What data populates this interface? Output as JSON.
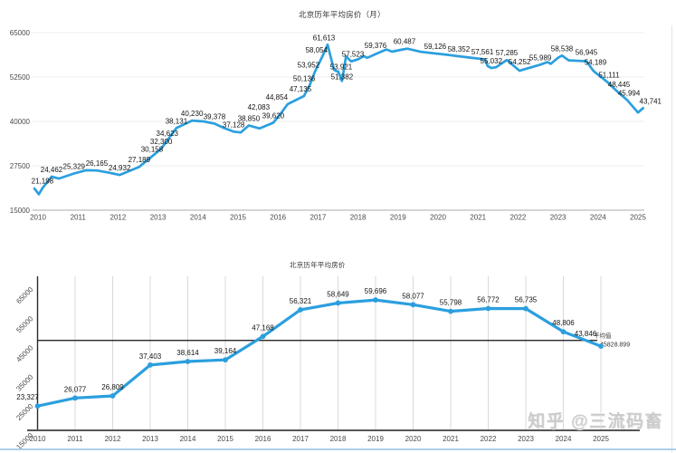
{
  "page": {
    "background": "#ffffff",
    "accent_blue": "#2b9fde",
    "watermark": "知乎 @三流码畜"
  },
  "chart_data": [
    {
      "type": "line",
      "title": "北京历年平均房价（月）",
      "xlabel": "",
      "ylabel": "",
      "x_ticks": [
        "2010",
        "2011",
        "2012",
        "2013",
        "2014",
        "2015",
        "2016",
        "2017",
        "2018",
        "2019",
        "2020",
        "2021",
        "2022",
        "2023",
        "2024",
        "2025"
      ],
      "y_ticks": [
        15000,
        27500,
        40000,
        52500,
        65000
      ],
      "ylim": [
        15000,
        65000
      ],
      "xlim": [
        2009.9,
        2025.4
      ],
      "grid": "horizontal",
      "legend": "none",
      "line_color": "#2b9fde",
      "points": [
        [
          2009.91,
          21100
        ],
        [
          2010.02,
          19500
        ],
        [
          2010.11,
          21198,
          "21,198"
        ],
        [
          2010.34,
          24462,
          "24,462"
        ],
        [
          2010.52,
          23900
        ],
        [
          2010.9,
          25329,
          "25,329"
        ],
        [
          2011.2,
          26250
        ],
        [
          2011.47,
          26165,
          "26,165"
        ],
        [
          2011.76,
          25600
        ],
        [
          2012.04,
          24932,
          "24,932"
        ],
        [
          2012.53,
          27189,
          "27,189"
        ],
        [
          2012.85,
          30158,
          "30,158"
        ],
        [
          2013.08,
          32300,
          "32,300"
        ],
        [
          2013.23,
          34623,
          "34,623"
        ],
        [
          2013.46,
          38131,
          "38,131"
        ],
        [
          2013.85,
          40230,
          "40,230"
        ],
        [
          2014.14,
          40000
        ],
        [
          2014.41,
          39378,
          "39,378"
        ],
        [
          2014.64,
          38200
        ],
        [
          2014.89,
          37128,
          "37,128"
        ],
        [
          2015.07,
          36900
        ],
        [
          2015.27,
          38850,
          "38,850"
        ],
        [
          2015.54,
          38000
        ],
        [
          2015.88,
          39620,
          "39,620"
        ],
        [
          2016.06,
          42083,
          "42,083",
          -24
        ],
        [
          2016.24,
          44854,
          "44,854",
          -12
        ],
        [
          2016.65,
          47135,
          "47,135",
          -4
        ],
        [
          2016.79,
          50136,
          "50,136",
          -6
        ],
        [
          2016.92,
          53952,
          "53,952",
          -7
        ],
        [
          2017.1,
          58054,
          "58,054",
          -6
        ],
        [
          2017.24,
          61613,
          "61,613",
          -4
        ],
        [
          2017.4,
          54500
        ],
        [
          2017.51,
          53921,
          "53,921",
          3,
          2
        ],
        [
          2017.6,
          51382,
          "51,382",
          0,
          3
        ],
        [
          2017.7,
          58300
        ],
        [
          2017.83,
          56900
        ],
        [
          2018.01,
          57523,
          "57,523",
          -6,
          2
        ],
        [
          2018.14,
          58400
        ],
        [
          2018.23,
          57900
        ],
        [
          2018.53,
          59376,
          "59,376",
          -4
        ],
        [
          2018.71,
          60250
        ],
        [
          2018.85,
          59650
        ],
        [
          2019.07,
          60150
        ],
        [
          2019.23,
          60487,
          "60,487",
          -3
        ],
        [
          2019.57,
          59600
        ],
        [
          2019.93,
          59126,
          "59,126"
        ],
        [
          2020.24,
          58750
        ],
        [
          2020.52,
          58352,
          "58,352"
        ],
        [
          2020.81,
          57960
        ],
        [
          2021.11,
          57561,
          "57,561"
        ],
        [
          2021.18,
          57350
        ],
        [
          2021.24,
          55600
        ],
        [
          2021.33,
          55032,
          "55,032"
        ],
        [
          2021.45,
          55250
        ],
        [
          2021.72,
          57285,
          "57,285"
        ],
        [
          2022.04,
          54252,
          "54,252",
          0,
          -2
        ],
        [
          2022.18,
          54750
        ],
        [
          2022.56,
          55989,
          "55,989"
        ],
        [
          2022.74,
          56700
        ],
        [
          2022.82,
          56200
        ],
        [
          2023.0,
          57900
        ],
        [
          2023.1,
          58538,
          "58,538"
        ],
        [
          2023.27,
          57200
        ],
        [
          2023.71,
          56945,
          "56,945",
          0,
          -2
        ],
        [
          2023.89,
          54189,
          "54,189",
          2,
          -2
        ],
        [
          2024.23,
          51111,
          "51,111",
          2
        ],
        [
          2024.48,
          48445,
          "48,445",
          2
        ],
        [
          2024.73,
          45994,
          "45,994",
          2
        ],
        [
          2025.0,
          42500
        ],
        [
          2025.13,
          43741,
          "43,741",
          8
        ]
      ]
    },
    {
      "type": "line",
      "title": "北京历年平均房价",
      "xlabel": "",
      "ylabel": "",
      "x_ticks": [
        "2010",
        "2011",
        "2012",
        "2013",
        "2014",
        "2015",
        "2016",
        "2017",
        "2018",
        "2019",
        "2020",
        "2021",
        "2022",
        "2023",
        "2024",
        "2025"
      ],
      "y_ticks": [
        15000,
        25000,
        35000,
        45000,
        55000,
        65000
      ],
      "ylim": [
        15000,
        65000
      ],
      "grid": "vertical",
      "legend": "none",
      "line_color": "#2b9fde",
      "categories": [
        2010,
        2011,
        2012,
        2013,
        2014,
        2015,
        2016,
        2017,
        2018,
        2019,
        2020,
        2021,
        2022,
        2023,
        2024,
        2025
      ],
      "values": [
        23327,
        26077,
        26809,
        37403,
        38614,
        39164,
        47168,
        56321,
        58649,
        59696,
        58077,
        55798,
        56772,
        56735,
        48806,
        43846
      ],
      "labels": [
        "23,327",
        "26,077",
        "26,809",
        "37,403",
        "38,614",
        "39,164",
        "47,168",
        "56,321",
        "58,649",
        "59,696",
        "58,077",
        "55,798",
        "56,772",
        "56,735",
        "48,806",
        "43,846"
      ],
      "label_offsets": {
        "0": [
          -11,
          0
        ],
        "15": [
          -17,
          -4
        ]
      },
      "mean": {
        "value": 45828.899,
        "label": "平均值",
        "value_label": "45828.899"
      }
    }
  ]
}
